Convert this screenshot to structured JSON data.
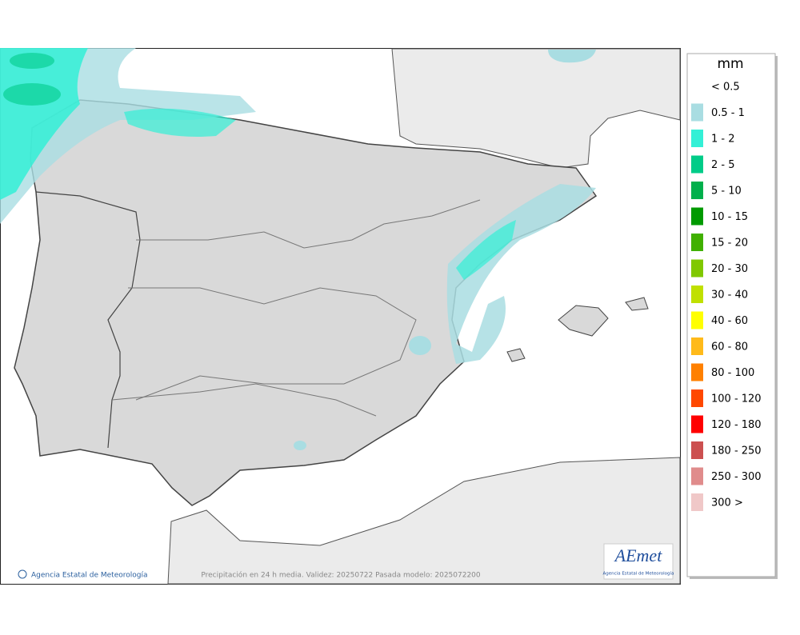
{
  "map": {
    "footer_left": "Agencia Estatal de Meteorología",
    "footer_center": "Precipitación en 24 h media. Validez: 20250722 Pasada modelo: 2025072200",
    "logo_text": "AEmet",
    "logo_subtitle": "Agencia Estatal de Meteorología"
  },
  "legend": {
    "unit": "mm",
    "items": [
      {
        "label": "< 0.5",
        "color": "#ffffff"
      },
      {
        "label": "0.5 - 1",
        "color": "#a9dde2"
      },
      {
        "label": "1 - 2",
        "color": "#33f0d6"
      },
      {
        "label": "2 - 5",
        "color": "#00cc88"
      },
      {
        "label": "5 - 10",
        "color": "#00b04c"
      },
      {
        "label": "10 - 15",
        "color": "#009a00"
      },
      {
        "label": "15 - 20",
        "color": "#40b000"
      },
      {
        "label": "20 - 30",
        "color": "#80c800"
      },
      {
        "label": "30 - 40",
        "color": "#c0e000"
      },
      {
        "label": "40 - 60",
        "color": "#ffff00"
      },
      {
        "label": "60 - 80",
        "color": "#ffba1a"
      },
      {
        "label": "80 - 100",
        "color": "#ff8000"
      },
      {
        "label": "100 - 120",
        "color": "#ff4800"
      },
      {
        "label": "120 - 180",
        "color": "#ff0000"
      },
      {
        "label": "180 - 250",
        "color": "#cc5050"
      },
      {
        "label": "250 - 300",
        "color": "#e08c8c"
      },
      {
        "label": "300 >",
        "color": "#f0c8c8"
      }
    ]
  }
}
